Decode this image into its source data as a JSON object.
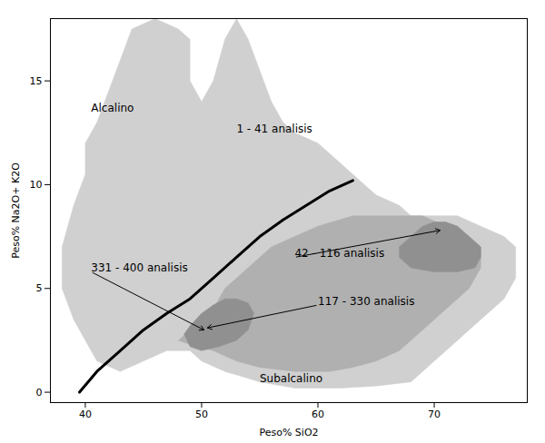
{
  "chart_data": {
    "type": "polygon",
    "xlabel": "Peso% SiO2",
    "ylabel": "Peso% Na2O+ K2O",
    "xlim": [
      37,
      78
    ],
    "ylim": [
      -0.5,
      18
    ],
    "xticks": [
      40,
      50,
      60,
      70
    ],
    "yticks": [
      0,
      5,
      10,
      15
    ],
    "polygons": [
      {
        "color": "#d0d0d0",
        "points": [
          [
            39,
            3.5
          ],
          [
            38,
            5
          ],
          [
            38,
            7
          ],
          [
            39,
            9
          ],
          [
            40,
            10.5
          ],
          [
            40,
            12
          ],
          [
            41,
            13
          ],
          [
            42,
            14.5
          ],
          [
            43,
            16
          ],
          [
            44,
            17.5
          ],
          [
            46,
            18
          ],
          [
            48,
            17.5
          ],
          [
            49,
            17
          ],
          [
            49,
            15
          ],
          [
            50,
            14
          ],
          [
            51,
            15
          ],
          [
            52,
            17
          ],
          [
            53,
            18
          ],
          [
            54,
            17
          ],
          [
            55,
            15.5
          ],
          [
            56,
            14
          ],
          [
            57,
            13
          ],
          [
            58,
            12.5
          ],
          [
            60,
            12
          ],
          [
            62,
            11
          ],
          [
            64,
            10
          ],
          [
            65,
            9.5
          ],
          [
            67,
            9
          ],
          [
            68,
            8.5
          ],
          [
            70,
            8.5
          ],
          [
            72,
            8.5
          ],
          [
            74,
            8
          ],
          [
            76,
            7.5
          ],
          [
            77,
            7
          ],
          [
            77,
            5.5
          ],
          [
            76,
            4.5
          ],
          [
            74,
            3.5
          ],
          [
            72,
            2.5
          ],
          [
            70,
            1.5
          ],
          [
            68,
            0.5
          ],
          [
            65,
            0.3
          ],
          [
            62,
            0.2
          ],
          [
            58,
            0.2
          ],
          [
            55,
            0.5
          ],
          [
            52,
            1
          ],
          [
            50,
            1.5
          ],
          [
            49,
            2
          ],
          [
            47,
            2
          ],
          [
            45,
            1.5
          ],
          [
            43,
            1
          ],
          [
            41,
            1.5
          ],
          [
            40,
            2.5
          ],
          [
            39,
            3.5
          ]
        ]
      },
      {
        "color": "#b0b0b0",
        "points": [
          [
            48,
            2.5
          ],
          [
            49,
            3
          ],
          [
            50,
            3.5
          ],
          [
            51,
            4
          ],
          [
            52,
            5
          ],
          [
            54,
            6
          ],
          [
            56,
            7
          ],
          [
            58,
            7.5
          ],
          [
            60,
            8
          ],
          [
            63,
            8.5
          ],
          [
            65,
            8.5
          ],
          [
            67,
            8.5
          ],
          [
            69,
            8.5
          ],
          [
            71,
            8
          ],
          [
            73,
            7.5
          ],
          [
            74,
            7
          ],
          [
            74,
            6
          ],
          [
            73,
            5
          ],
          [
            71,
            4
          ],
          [
            69,
            3
          ],
          [
            67,
            2
          ],
          [
            65,
            1.5
          ],
          [
            63,
            1.2
          ],
          [
            61,
            1
          ],
          [
            58,
            1
          ],
          [
            55,
            1.2
          ],
          [
            53,
            1.5
          ],
          [
            51,
            2
          ],
          [
            49,
            2.3
          ],
          [
            48,
            2.5
          ]
        ]
      },
      {
        "color": "#909090",
        "points": [
          [
            48.5,
            2.8
          ],
          [
            49,
            3.2
          ],
          [
            50,
            3.8
          ],
          [
            51,
            4.2
          ],
          [
            52,
            4.5
          ],
          [
            53,
            4.5
          ],
          [
            54,
            4.3
          ],
          [
            54.5,
            3.8
          ],
          [
            54,
            3
          ],
          [
            53,
            2.5
          ],
          [
            51.5,
            2.2
          ],
          [
            50,
            2.0
          ],
          [
            49,
            2.2
          ],
          [
            48.5,
            2.8
          ]
        ]
      },
      {
        "color": "#909090",
        "points": [
          [
            67,
            7.0
          ],
          [
            68,
            7.5
          ],
          [
            69,
            8.0
          ],
          [
            70,
            8.2
          ],
          [
            71,
            8.2
          ],
          [
            72,
            8.0
          ],
          [
            73,
            7.5
          ],
          [
            74,
            7.0
          ],
          [
            74,
            6.5
          ],
          [
            73.5,
            6.0
          ],
          [
            72,
            5.8
          ],
          [
            70,
            5.8
          ],
          [
            68,
            6.0
          ],
          [
            67,
            6.5
          ],
          [
            67,
            7.0
          ]
        ]
      }
    ],
    "dividing_line": {
      "color": "#000000",
      "points": [
        [
          39.5,
          0.0
        ],
        [
          41,
          1.0
        ],
        [
          43,
          2.0
        ],
        [
          45,
          3.0
        ],
        [
          47,
          3.8
        ],
        [
          49,
          4.5
        ],
        [
          51,
          5.5
        ],
        [
          53,
          6.5
        ],
        [
          55,
          7.5
        ],
        [
          57,
          8.3
        ],
        [
          59,
          9.0
        ],
        [
          61,
          9.7
        ],
        [
          63,
          10.2
        ]
      ]
    },
    "annotations": [
      {
        "label": "331 - 400 analisis",
        "x": 40.5,
        "y": 5.8,
        "target": [
          50.2,
          3.0
        ]
      },
      {
        "label": "117 - 330 analisis",
        "x": 60.0,
        "y": 4.2,
        "target": [
          50.5,
          3.1
        ]
      },
      {
        "label": "42 - 116 analisis",
        "x": 58.0,
        "y": 6.5,
        "target": [
          70.5,
          7.8
        ]
      },
      {
        "label": "1 - 41 analisis",
        "x": 53.0,
        "y": 12.5
      },
      {
        "label": "Alcalino",
        "x": 40.5,
        "y": 13.5
      },
      {
        "label": "Subalcalino",
        "x": 55.0,
        "y": 0.5
      }
    ]
  }
}
